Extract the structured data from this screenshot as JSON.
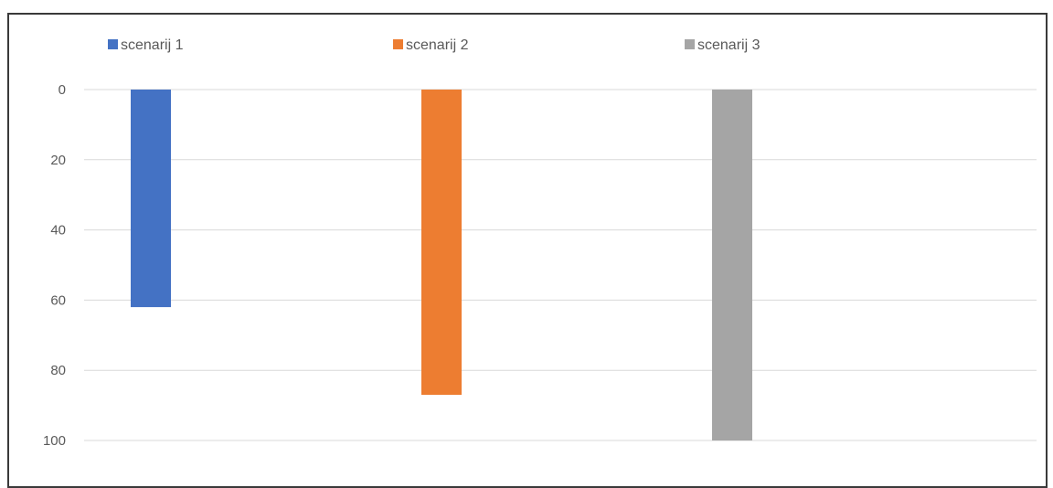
{
  "chart_data": {
    "type": "bar",
    "orientation": "vertical",
    "y_axis_reversed": true,
    "y_ticks": [
      "0",
      "20",
      "40",
      "60",
      "80",
      "100"
    ],
    "ylim": [
      0,
      100
    ],
    "grid": true,
    "legend_position": "top",
    "series": [
      {
        "name": "scenarij 1",
        "value": 62,
        "color": "#4472C4"
      },
      {
        "name": "scenarij 2",
        "value": 87,
        "color": "#ED7D31"
      },
      {
        "name": "scenarij 3",
        "value": 100,
        "color": "#A5A5A5"
      }
    ],
    "gridline_color": "#d9d9d9"
  }
}
